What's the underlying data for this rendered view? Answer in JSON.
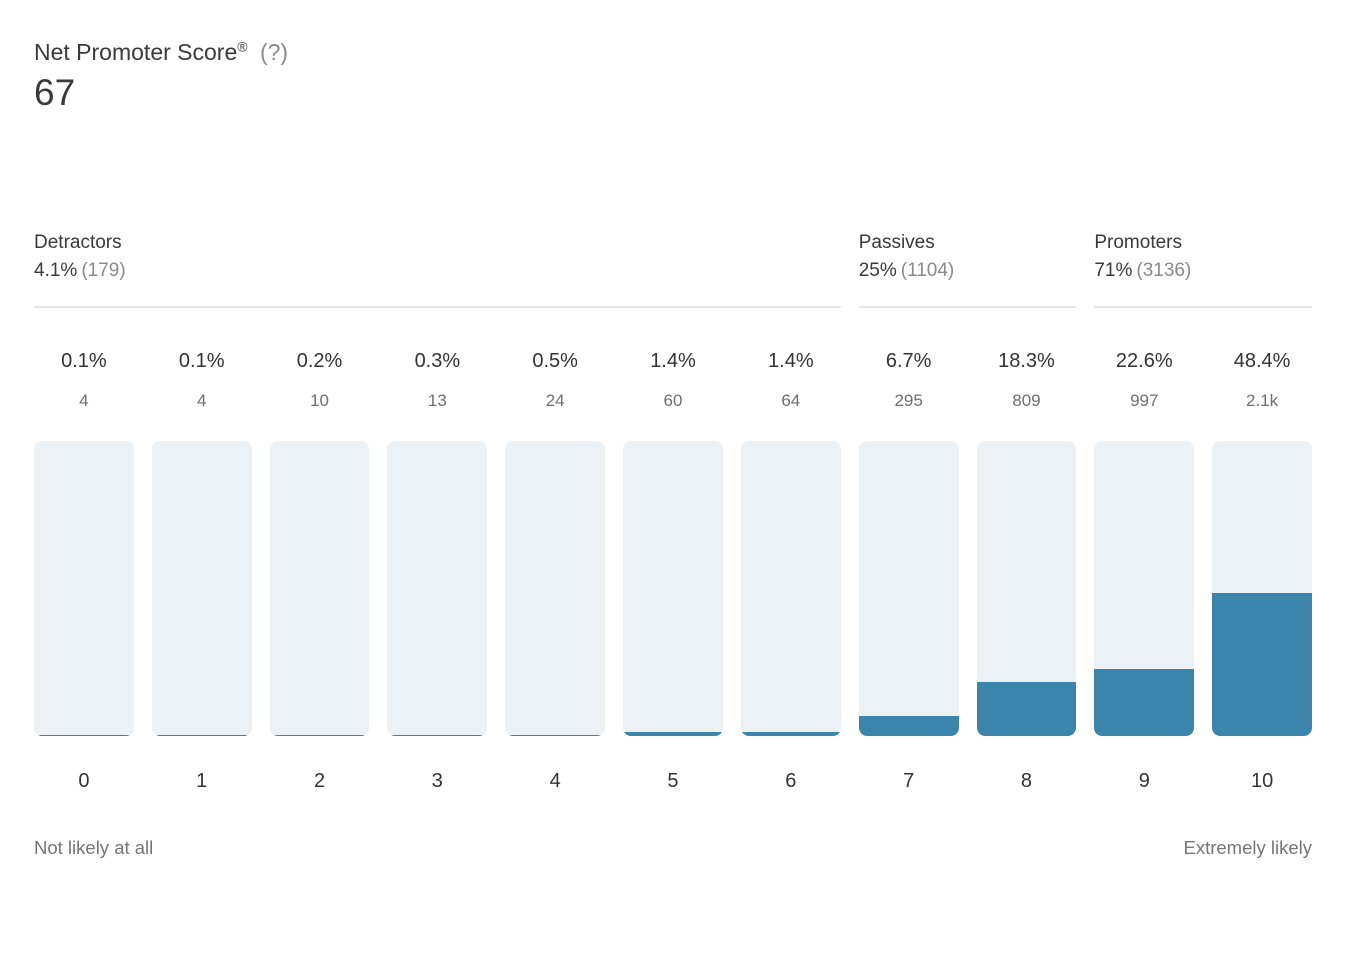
{
  "header": {
    "title": "Net Promoter Score",
    "registered_mark": "®",
    "help_label": "(?)",
    "score": "67"
  },
  "groups": [
    {
      "label": "Detractors",
      "pct": "4.1%",
      "count": "(179)"
    },
    {
      "label": "Passives",
      "pct": "25%",
      "count": "(1104)"
    },
    {
      "label": "Promoters",
      "pct": "71%",
      "count": "(3136)"
    }
  ],
  "chart_data": {
    "type": "bar",
    "title": "Net Promoter Score®",
    "score": 67,
    "categories": [
      "0",
      "1",
      "2",
      "3",
      "4",
      "5",
      "6",
      "7",
      "8",
      "9",
      "10"
    ],
    "values_pct": [
      0.1,
      0.1,
      0.2,
      0.3,
      0.5,
      1.4,
      1.4,
      6.7,
      18.3,
      22.6,
      48.4
    ],
    "counts": [
      4,
      4,
      10,
      13,
      24,
      60,
      64,
      295,
      809,
      997,
      2100
    ],
    "bars": [
      {
        "label": "0",
        "pct": "0.1%",
        "count": "4"
      },
      {
        "label": "1",
        "pct": "0.1%",
        "count": "4"
      },
      {
        "label": "2",
        "pct": "0.2%",
        "count": "10"
      },
      {
        "label": "3",
        "pct": "0.3%",
        "count": "13"
      },
      {
        "label": "4",
        "pct": "0.5%",
        "count": "24"
      },
      {
        "label": "5",
        "pct": "1.4%",
        "count": "60"
      },
      {
        "label": "6",
        "pct": "1.4%",
        "count": "64"
      },
      {
        "label": "7",
        "pct": "6.7%",
        "count": "295"
      },
      {
        "label": "8",
        "pct": "18.3%",
        "count": "809"
      },
      {
        "label": "9",
        "pct": "22.6%",
        "count": "997"
      },
      {
        "label": "10",
        "pct": "48.4%",
        "count": "2.1k"
      }
    ],
    "groups_summary": [
      {
        "label": "Detractors",
        "pct": "4.1%",
        "count_raw": 179,
        "bar_range": [
          0,
          6
        ]
      },
      {
        "label": "Passives",
        "pct": "25%",
        "count_raw": 1104,
        "bar_range": [
          7,
          8
        ]
      },
      {
        "label": "Promoters",
        "pct": "71%",
        "count_raw": 3136,
        "bar_range": [
          9,
          10
        ]
      }
    ],
    "xlabel_left": "Not likely at all",
    "xlabel_right": "Extremely likely",
    "ylim": [
      0,
      100
    ],
    "legend": "none",
    "grid": "off",
    "colors": {
      "fill": "#3b84ab",
      "track": "#ebf1f5"
    }
  },
  "footer": {
    "left_label": "Not likely at all",
    "right_label": "Extremely likely"
  }
}
